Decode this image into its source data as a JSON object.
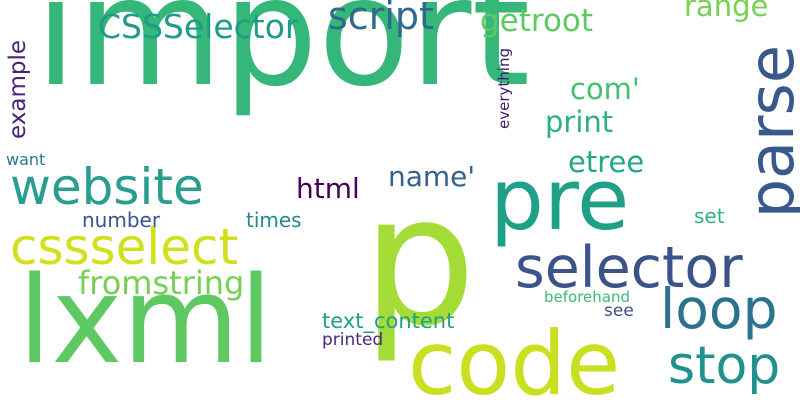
{
  "words": [
    {
      "text": "import",
      "color": "#35b779"
    },
    {
      "text": "p",
      "color": "#a5db36"
    },
    {
      "text": "code",
      "color": "#c8e020"
    },
    {
      "text": "lxml",
      "color": "#5ec962"
    },
    {
      "text": "pre",
      "color": "#1fa187"
    },
    {
      "text": "website",
      "color": "#2a9d8f"
    },
    {
      "text": "parse",
      "color": "#38598c"
    },
    {
      "text": "cssselect",
      "color": "#d0e11c"
    },
    {
      "text": "selector",
      "color": "#3b528b"
    },
    {
      "text": "loop",
      "color": "#2c728e"
    },
    {
      "text": "stop",
      "color": "#21918c"
    },
    {
      "text": "script",
      "color": "#31688e"
    },
    {
      "text": "CSSSelector",
      "color": "#1e9c89"
    },
    {
      "text": "getroot",
      "color": "#5ec962"
    },
    {
      "text": "range",
      "color": "#7ad151"
    },
    {
      "text": "com'",
      "color": "#44bf70"
    },
    {
      "text": "print",
      "color": "#2db27d"
    },
    {
      "text": "etree",
      "color": "#22a884"
    },
    {
      "text": "name'",
      "color": "#33638d"
    },
    {
      "text": "html",
      "color": "#440154"
    },
    {
      "text": "fromstring",
      "color": "#75d054"
    },
    {
      "text": "number",
      "color": "#39568c"
    },
    {
      "text": "times",
      "color": "#23898e"
    },
    {
      "text": "set",
      "color": "#2fb47c"
    },
    {
      "text": "text_content",
      "color": "#1fa088"
    },
    {
      "text": "beforehand",
      "color": "#3aba76"
    },
    {
      "text": "see",
      "color": "#3e4a89"
    },
    {
      "text": "printed",
      "color": "#482878"
    },
    {
      "text": "example",
      "color": "#482475"
    },
    {
      "text": "want",
      "color": "#2a788e"
    },
    {
      "text": "everything",
      "color": "#3b1f6d"
    }
  ]
}
